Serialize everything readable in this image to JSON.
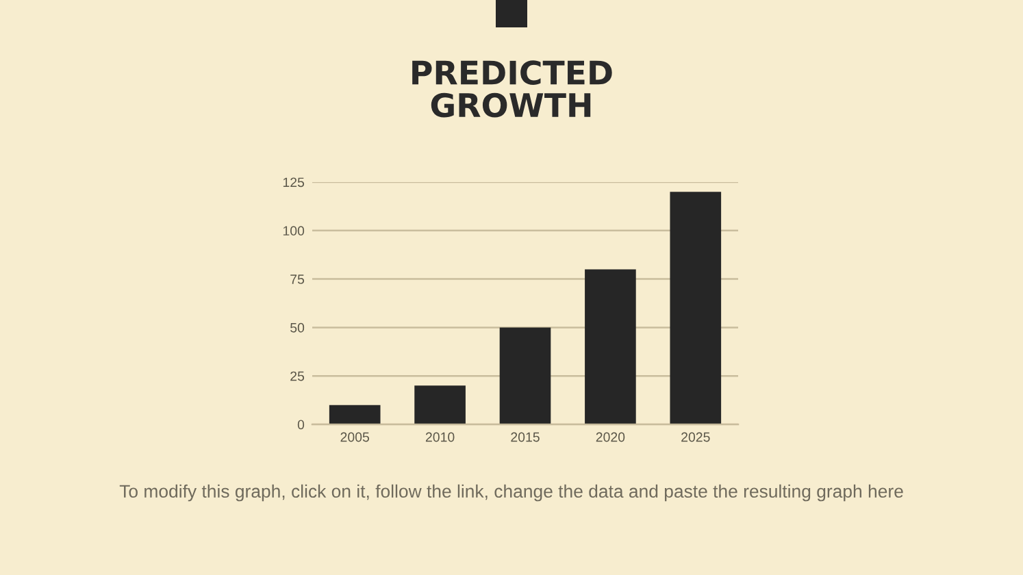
{
  "chart_data": {
    "type": "bar",
    "title": "PREDICTED\nGROWTH",
    "categories": [
      "2005",
      "2010",
      "2015",
      "2020",
      "2025"
    ],
    "values": [
      10,
      20,
      50,
      80,
      120
    ],
    "color": "#262626",
    "ylim": [
      0,
      125
    ],
    "yticks": [
      0,
      25,
      50,
      75,
      100,
      125
    ],
    "grid": "y",
    "annotations": [
      "To modify this graph, click on it, follow the link, change the data and paste the resulting graph here"
    ]
  }
}
